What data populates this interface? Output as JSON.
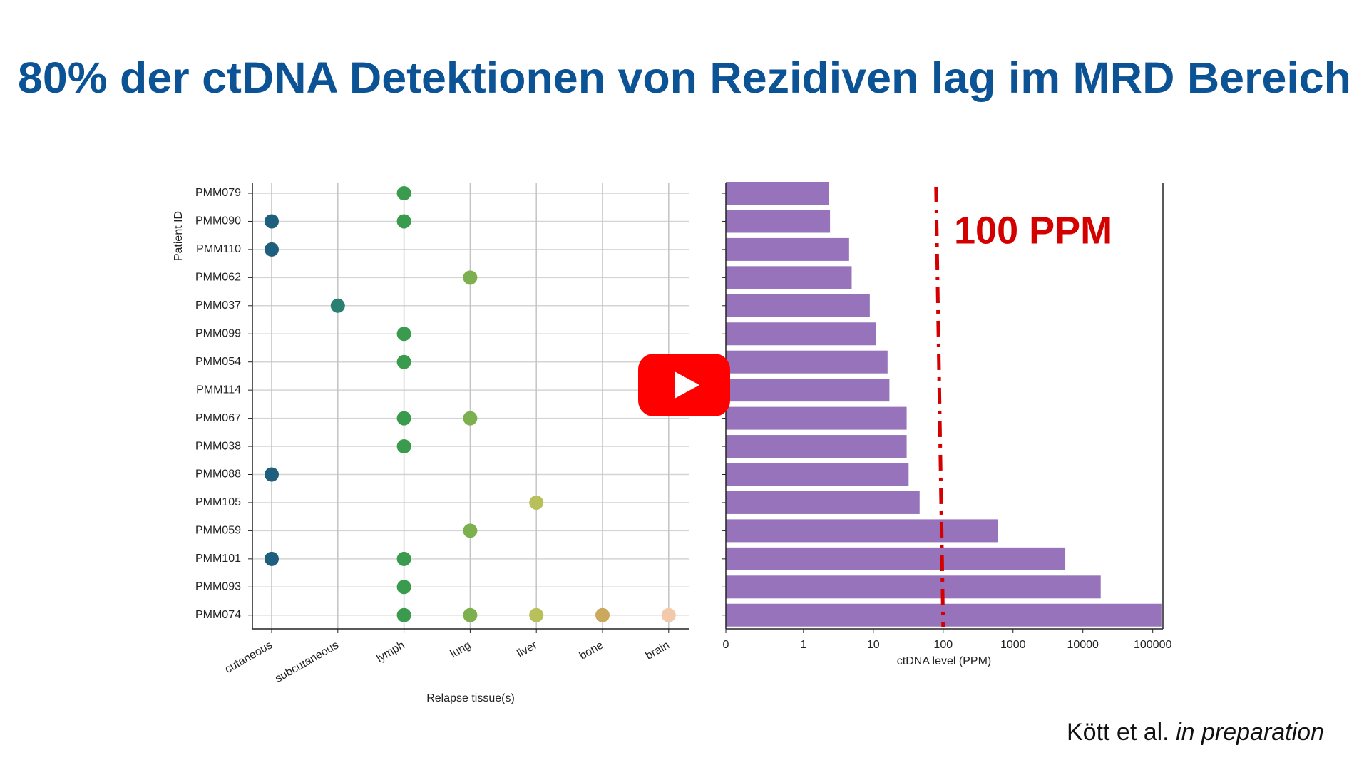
{
  "title": "80% der ctDNA Detektionen von Rezidiven lag im MRD Bereich",
  "chart_data": [
    {
      "type": "dot",
      "x_label": "Relapse tissue(s)",
      "y_label": "Patient ID",
      "x_categories": [
        "cutaneous",
        "subcutaneous",
        "lymph",
        "lung",
        "liver",
        "bone",
        "brain"
      ],
      "colors": [
        "#1d5f7c",
        "#2a7f70",
        "#3a9a4e",
        "#7cb04f",
        "#b8c05c",
        "#caa85c",
        "#f2c9aa"
      ],
      "y_categories": [
        "PMM079",
        "PMM090",
        "PMM110",
        "PMM062",
        "PMM037",
        "PMM099",
        "PMM054",
        "PMM114",
        "PMM067",
        "PMM038",
        "PMM088",
        "PMM105",
        "PMM059",
        "PMM101",
        "PMM093",
        "PMM074"
      ],
      "presence": [
        [
          0,
          0,
          1,
          0,
          0,
          0,
          0
        ],
        [
          1,
          0,
          1,
          0,
          0,
          0,
          0
        ],
        [
          1,
          0,
          0,
          0,
          0,
          0,
          0
        ],
        [
          0,
          0,
          0,
          1,
          0,
          0,
          0
        ],
        [
          0,
          1,
          0,
          0,
          0,
          0,
          0
        ],
        [
          0,
          0,
          1,
          0,
          0,
          0,
          0
        ],
        [
          0,
          0,
          1,
          0,
          0,
          0,
          0
        ],
        [
          0,
          0,
          0,
          0,
          0,
          0,
          0
        ],
        [
          0,
          0,
          1,
          1,
          0,
          0,
          0
        ],
        [
          0,
          0,
          1,
          0,
          0,
          0,
          0
        ],
        [
          1,
          0,
          0,
          0,
          0,
          0,
          0
        ],
        [
          0,
          0,
          0,
          0,
          1,
          0,
          0
        ],
        [
          0,
          0,
          0,
          1,
          0,
          0,
          0
        ],
        [
          1,
          0,
          1,
          0,
          0,
          0,
          0
        ],
        [
          0,
          0,
          1,
          0,
          0,
          0,
          0
        ],
        [
          0,
          0,
          1,
          1,
          1,
          1,
          1
        ]
      ],
      "grid": true
    },
    {
      "type": "hbar",
      "x_label": "ctDNA level (PPM)",
      "xscale": "symlog",
      "values": [
        2.3,
        2.4,
        4.5,
        4.9,
        8.9,
        11,
        16,
        17,
        30,
        30,
        32,
        46,
        600,
        5600,
        18000,
        133000
      ],
      "color": "#9673bb",
      "xlim": [
        0,
        140000
      ],
      "xticks": [
        0,
        1,
        10,
        100,
        1000,
        10000,
        100000
      ],
      "reference_line": {
        "value": 100,
        "label": "100 PPM",
        "color": "#d40000"
      }
    }
  ],
  "citation": {
    "authors": "Kött et al.",
    "note": "in preparation"
  }
}
